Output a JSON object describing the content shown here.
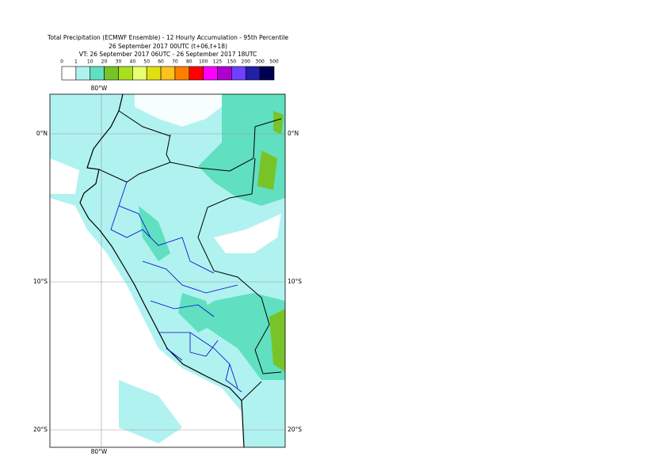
{
  "title": [
    "Total Precipitation (ECMWF Ensemble) - 12 Hourly Accumulation - 95th Percentile",
    "26 September 2017 00UTC (t+06,t+18)",
    "VT: 26 September 2017 06UTC - 26 September 2017 18UTC"
  ],
  "legend": {
    "labels": [
      "0",
      "1",
      "10",
      "20",
      "30",
      "40",
      "50",
      "60",
      "70",
      "80",
      "100",
      "125",
      "150",
      "200",
      "300",
      "500"
    ],
    "colors": [
      "#ffffff",
      "#b0f2f0",
      "#60e0c0",
      "#78c428",
      "#a8e01e",
      "#e8ff70",
      "#e0e010",
      "#ffc020",
      "#ff8000",
      "#ff0000",
      "#ff00ff",
      "#b000d0",
      "#7040ff",
      "#2020a8",
      "#000050"
    ]
  },
  "graticule": {
    "lon": [
      "80°W"
    ],
    "lat": [
      "0°N",
      "10°S",
      "20°S"
    ]
  }
}
